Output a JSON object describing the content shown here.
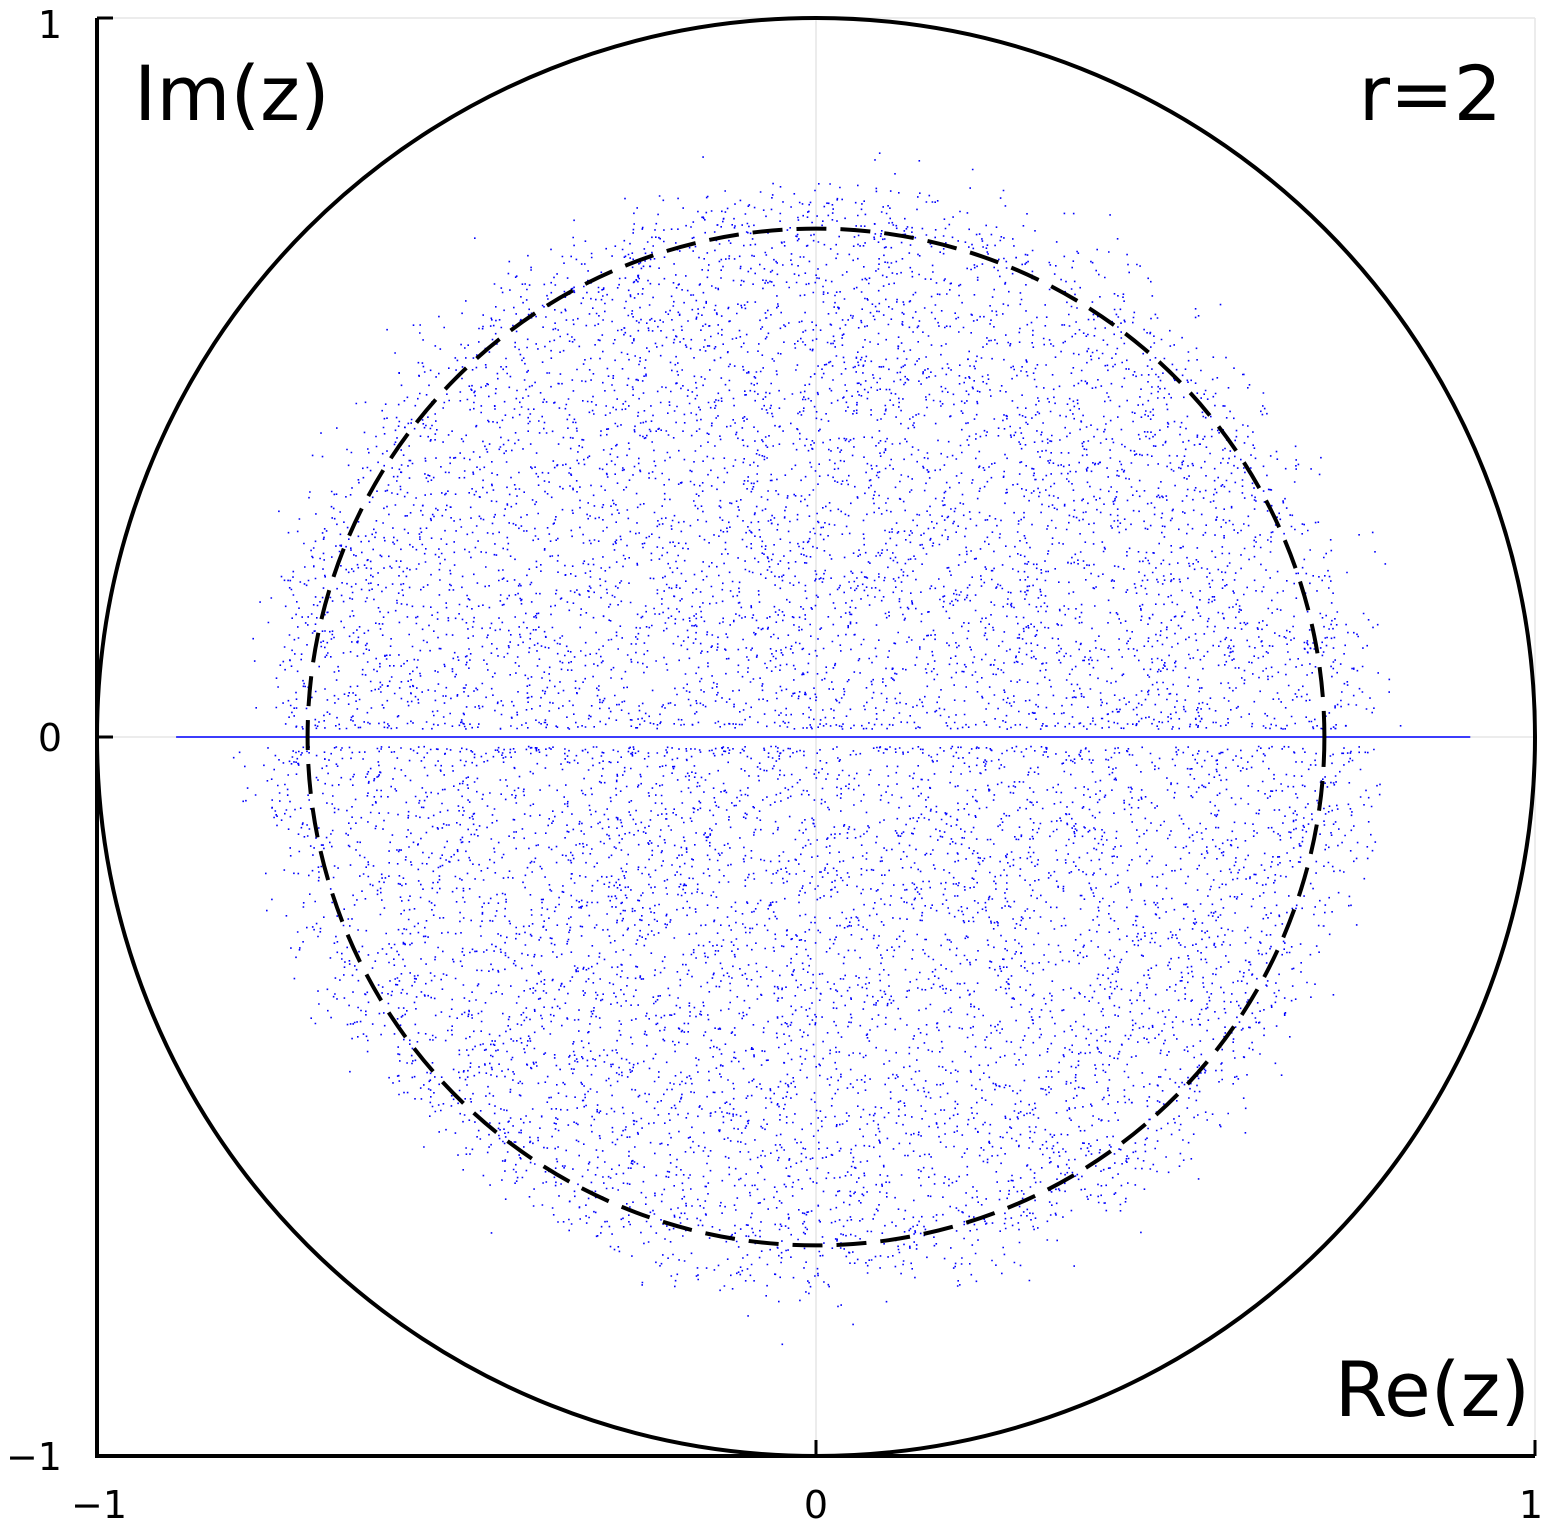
{
  "chart_data": {
    "type": "scatter",
    "title": "",
    "xlabel": "Re(z)",
    "ylabel": "Im(z)",
    "annotation": "r=2",
    "xlim": [
      -1,
      1
    ],
    "ylim": [
      -1,
      1
    ],
    "x_ticks": [
      {
        "value": -1,
        "label": "−1"
      },
      {
        "value": 0,
        "label": "0"
      },
      {
        "value": 1,
        "label": "1"
      }
    ],
    "y_ticks": [
      {
        "value": -1,
        "label": "−1"
      },
      {
        "value": 0,
        "label": "0"
      },
      {
        "value": 1,
        "label": "1"
      }
    ],
    "grid": true,
    "colors": {
      "points": "#0000ff",
      "circles": "#000000",
      "grid": "#e6e6e6"
    },
    "reference_curves": [
      {
        "kind": "circle",
        "center": [
          0,
          0
        ],
        "radius": 1.0,
        "style": "solid"
      },
      {
        "kind": "circle",
        "center": [
          0,
          0
        ],
        "radius": 0.7071,
        "style": "dashed"
      }
    ],
    "point_clouds": [
      {
        "kind": "disk-cloud",
        "center": [
          0,
          0
        ],
        "approx_radius": 0.7071,
        "fuzz_edge_to": 0.8,
        "density": "uniform",
        "count_drawn": 12000
      },
      {
        "kind": "real-axis-segment",
        "x_range": [
          -0.89,
          0.91
        ],
        "y": 0
      }
    ]
  }
}
